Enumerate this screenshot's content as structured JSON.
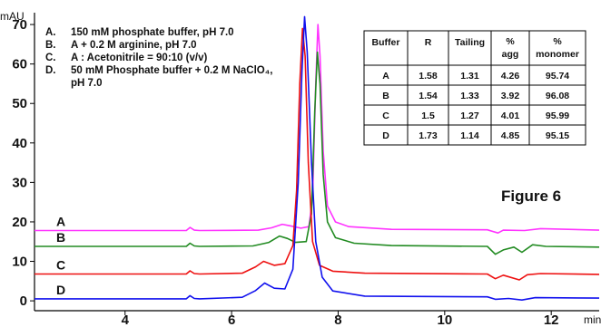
{
  "chart_data": {
    "type": "line",
    "ylabel": "mAU",
    "xlabel": "min",
    "xlim": [
      2.3,
      12.9
    ],
    "ylim": [
      -2.5,
      73
    ],
    "x_ticks": [
      4,
      6,
      8,
      10,
      12
    ],
    "y_ticks": [
      0,
      10,
      20,
      30,
      40,
      50,
      60,
      70
    ],
    "grid": false,
    "legend_position": "top-left",
    "legend": [
      {
        "key": "A.",
        "text": "150 mM phosphate buffer, pH 7.0"
      },
      {
        "key": "B.",
        "text": "A + 0.2 M arginine, pH 7.0"
      },
      {
        "key": "C.",
        "text": "A : Acetonitrile = 90:10 (v/v)"
      },
      {
        "key": "D.",
        "text": "50 mM Phosphate buffer + 0.2 M NaClO₄,",
        "cont": "pH 7.0"
      }
    ],
    "series": [
      {
        "name": "A",
        "color": "#ff33ff",
        "baseline": 17.8,
        "points": [
          [
            2.3,
            17.8
          ],
          [
            5.15,
            17.8
          ],
          [
            5.22,
            18.6
          ],
          [
            5.3,
            17.9
          ],
          [
            5.4,
            17.8
          ],
          [
            6.5,
            17.9
          ],
          [
            6.75,
            18.5
          ],
          [
            6.95,
            19.4
          ],
          [
            7.1,
            19.0
          ],
          [
            7.3,
            18.4
          ],
          [
            7.45,
            18.8
          ],
          [
            7.52,
            26
          ],
          [
            7.58,
            55
          ],
          [
            7.62,
            70
          ],
          [
            7.66,
            62
          ],
          [
            7.72,
            38
          ],
          [
            7.8,
            24
          ],
          [
            7.95,
            20
          ],
          [
            8.2,
            18.8
          ],
          [
            9,
            18.1
          ],
          [
            10.8,
            18.0
          ],
          [
            11.0,
            17.2
          ],
          [
            11.1,
            17.9
          ],
          [
            11.5,
            17.8
          ],
          [
            11.8,
            18.3
          ],
          [
            12.9,
            17.9
          ]
        ]
      },
      {
        "name": "B",
        "color": "#228b22",
        "baseline": 13.8,
        "points": [
          [
            2.3,
            13.8
          ],
          [
            5.15,
            13.8
          ],
          [
            5.22,
            14.6
          ],
          [
            5.3,
            13.9
          ],
          [
            5.4,
            13.8
          ],
          [
            6.4,
            13.9
          ],
          [
            6.7,
            14.8
          ],
          [
            6.9,
            16.4
          ],
          [
            7.05,
            15.8
          ],
          [
            7.2,
            14.8
          ],
          [
            7.4,
            15.0
          ],
          [
            7.5,
            22
          ],
          [
            7.56,
            48
          ],
          [
            7.61,
            63
          ],
          [
            7.66,
            55
          ],
          [
            7.72,
            32
          ],
          [
            7.8,
            20
          ],
          [
            7.95,
            16
          ],
          [
            8.3,
            14.6
          ],
          [
            9,
            14.0
          ],
          [
            10.8,
            13.8
          ],
          [
            10.95,
            11.8
          ],
          [
            11.1,
            12.9
          ],
          [
            11.3,
            13.6
          ],
          [
            11.45,
            12.3
          ],
          [
            11.65,
            14.2
          ],
          [
            11.9,
            13.8
          ],
          [
            12.9,
            13.6
          ]
        ]
      },
      {
        "name": "C",
        "color": "#ee1111",
        "baseline": 6.8,
        "points": [
          [
            2.3,
            6.8
          ],
          [
            5.15,
            6.8
          ],
          [
            5.22,
            7.6
          ],
          [
            5.3,
            6.9
          ],
          [
            5.4,
            6.8
          ],
          [
            6.2,
            7.0
          ],
          [
            6.45,
            8.6
          ],
          [
            6.6,
            10.0
          ],
          [
            6.8,
            9.0
          ],
          [
            7.0,
            9.4
          ],
          [
            7.15,
            14
          ],
          [
            7.22,
            28
          ],
          [
            7.28,
            55
          ],
          [
            7.33,
            69
          ],
          [
            7.38,
            62
          ],
          [
            7.44,
            35
          ],
          [
            7.52,
            15
          ],
          [
            7.65,
            9
          ],
          [
            7.9,
            7.5
          ],
          [
            8.5,
            7.0
          ],
          [
            10.8,
            6.8
          ],
          [
            10.95,
            5.6
          ],
          [
            11.1,
            6.5
          ],
          [
            11.4,
            5.3
          ],
          [
            11.55,
            6.6
          ],
          [
            11.8,
            6.9
          ],
          [
            12.9,
            6.7
          ]
        ]
      },
      {
        "name": "D",
        "color": "#1111ee",
        "baseline": 0.5,
        "points": [
          [
            2.3,
            0.5
          ],
          [
            5.15,
            0.5
          ],
          [
            5.22,
            1.3
          ],
          [
            5.3,
            0.6
          ],
          [
            5.4,
            0.5
          ],
          [
            6.2,
            0.9
          ],
          [
            6.45,
            2.6
          ],
          [
            6.62,
            4.5
          ],
          [
            6.8,
            3.2
          ],
          [
            7.0,
            3.0
          ],
          [
            7.15,
            8
          ],
          [
            7.25,
            30
          ],
          [
            7.32,
            58
          ],
          [
            7.37,
            72
          ],
          [
            7.42,
            63
          ],
          [
            7.5,
            35
          ],
          [
            7.58,
            15
          ],
          [
            7.7,
            6
          ],
          [
            7.9,
            2.5
          ],
          [
            8.5,
            1.2
          ],
          [
            10.8,
            1.0
          ],
          [
            10.95,
            0.4
          ],
          [
            11.2,
            0.6
          ],
          [
            11.45,
            0.2
          ],
          [
            11.7,
            0.8
          ],
          [
            12.9,
            0.7
          ]
        ]
      }
    ],
    "figure_label": "Figure 6",
    "table": {
      "headers": [
        "Buffer",
        "R",
        "Tailing",
        "% agg",
        "% monomer"
      ],
      "rows": [
        [
          "A",
          "1.58",
          "1.31",
          "4.26",
          "95.74"
        ],
        [
          "B",
          "1.54",
          "1.33",
          "3.92",
          "96.08"
        ],
        [
          "C",
          "1.5",
          "1.27",
          "4.01",
          "95.99"
        ],
        [
          "D",
          "1.73",
          "1.14",
          "4.85",
          "95.15"
        ]
      ]
    }
  }
}
